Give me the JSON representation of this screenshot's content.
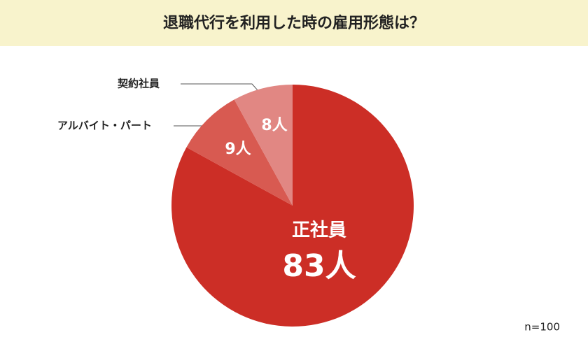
{
  "chart_data": {
    "type": "pie",
    "title": "退職代行を利用した時の雇用形態は？",
    "categories": [
      "正社員",
      "アルバイト・パート",
      "契約社員"
    ],
    "values": [
      83,
      9,
      8
    ],
    "value_labels": [
      "83人",
      "9人",
      "8人"
    ],
    "colors": [
      "#cc2e26",
      "#d85a51",
      "#e18783"
    ],
    "annotation": "n=100"
  }
}
